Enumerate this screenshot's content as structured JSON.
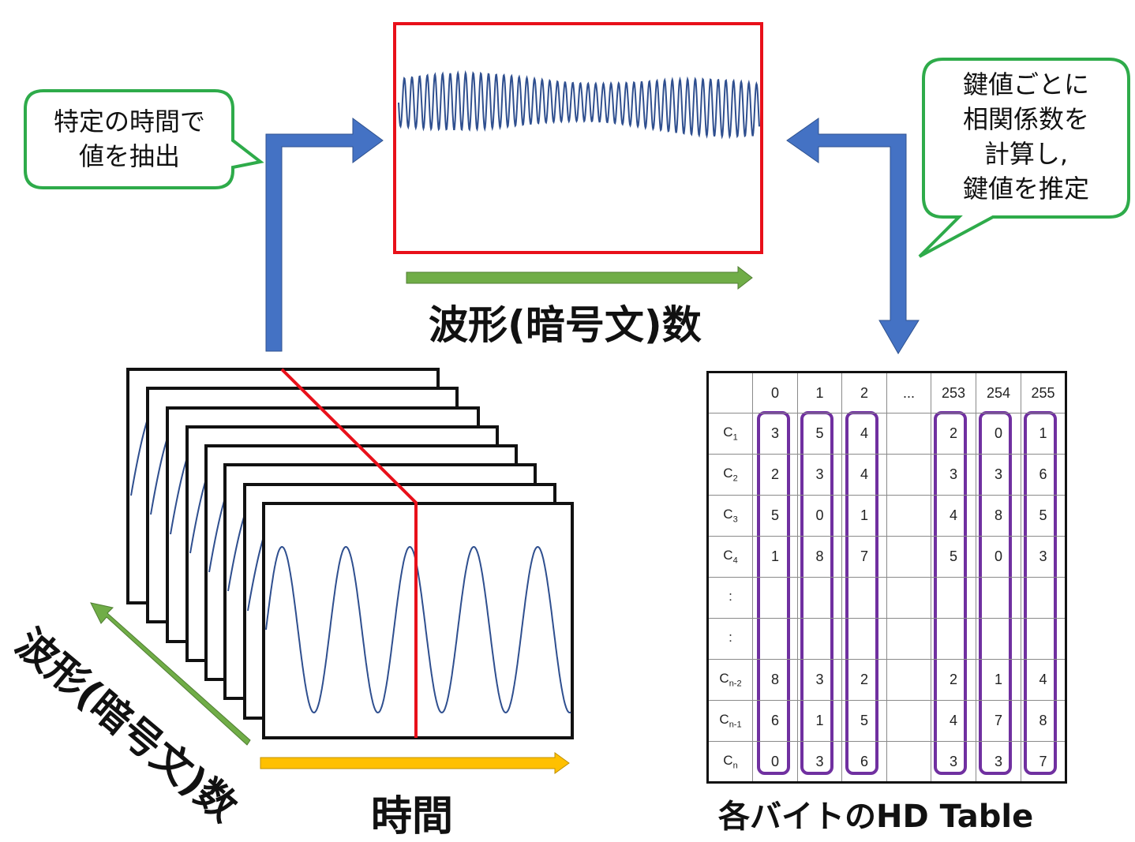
{
  "callout_left": {
    "line1": "特定の時間で",
    "line2": "値を抽出"
  },
  "callout_right": {
    "line1": "鍵値ごとに",
    "line2": "相関係数を",
    "line3": "計算し,",
    "line4": "鍵値を推定"
  },
  "label_top": "波形(暗号文)数",
  "label_time": "時間",
  "label_waves": "波形(暗号文)数",
  "label_table": "各バイトのHD Table",
  "colors": {
    "blue_arrow": "#4472C4",
    "green_arrow": "#70AD47",
    "orange_arrow": "#FFC000",
    "red": "#E8101A",
    "callout_border": "#2EAB4A",
    "purple": "#7030A0",
    "wave": "#2F4F8F"
  },
  "table": {
    "headers": [
      "0",
      "1",
      "2",
      "...",
      "253",
      "254",
      "255"
    ],
    "rows": [
      {
        "label": "C",
        "sub": "1",
        "values": [
          "3",
          "5",
          "4",
          "",
          "2",
          "0",
          "1"
        ]
      },
      {
        "label": "C",
        "sub": "2",
        "values": [
          "2",
          "3",
          "4",
          "",
          "3",
          "3",
          "6"
        ]
      },
      {
        "label": "C",
        "sub": "3",
        "values": [
          "5",
          "0",
          "1",
          "",
          "4",
          "8",
          "5"
        ]
      },
      {
        "label": "C",
        "sub": "4",
        "values": [
          "1",
          "8",
          "7",
          "",
          "5",
          "0",
          "3"
        ]
      },
      {
        "label": ":",
        "sub": "",
        "values": [
          "",
          "",
          "",
          "",
          "",
          "",
          ""
        ]
      },
      {
        "label": ":",
        "sub": "",
        "values": [
          "",
          "",
          "",
          "",
          "",
          "",
          ""
        ]
      },
      {
        "label": "C",
        "sub": "n-2",
        "values": [
          "8",
          "3",
          "2",
          "",
          "2",
          "1",
          "4"
        ]
      },
      {
        "label": "C",
        "sub": "n-1",
        "values": [
          "6",
          "1",
          "5",
          "",
          "4",
          "7",
          "8"
        ]
      },
      {
        "label": "C",
        "sub": "n",
        "values": [
          "0",
          "3",
          "6",
          "",
          "3",
          "3",
          "7"
        ]
      }
    ]
  }
}
